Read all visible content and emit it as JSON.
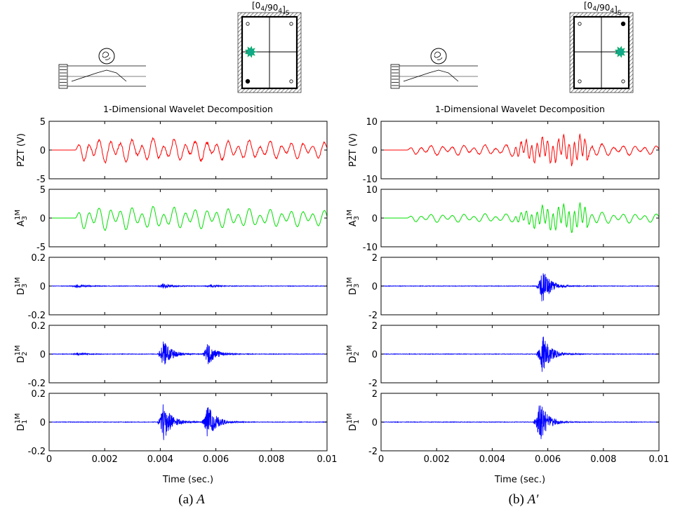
{
  "figure": {
    "laminate_label_main": "[0",
    "laminate_sub_1": "4",
    "laminate_mid": "/90",
    "laminate_sub_2": "4",
    "laminate_close": "]",
    "laminate_sub_3": "S",
    "xlabel": "Time (sec.)",
    "colors": {
      "pzt": "#ff0000",
      "approx": "#00e000",
      "detail": "#0000ff",
      "impact": "#11a88a"
    }
  },
  "panels": [
    {
      "caption_prefix": "(a) ",
      "caption_var": "A",
      "caption_suffix": "",
      "title": "1-Dimensional Wavelet Decomposition",
      "impact_side": "left",
      "filled_corner": "bottom-left",
      "xticks": [
        "0",
        "0.002",
        "0.004",
        "0.006",
        "0.008",
        "0.01"
      ],
      "subplots": [
        {
          "ylabel": "PZT (V)",
          "yticks": [
            "5",
            "0",
            "-5"
          ],
          "ylim": [
            -5,
            5
          ],
          "kind": "pzt"
        },
        {
          "ylabel_main": "A",
          "ylabel_sub": "3",
          "ylabel_sup": "1M",
          "yticks": [
            "5",
            "0",
            "-5"
          ],
          "ylim": [
            -5,
            5
          ],
          "kind": "approx"
        },
        {
          "ylabel_main": "D",
          "ylabel_sub": "3",
          "ylabel_sup": "1M",
          "yticks": [
            "0.2",
            "0",
            "-0.2"
          ],
          "ylim": [
            -0.2,
            0.2
          ],
          "kind": "detail"
        },
        {
          "ylabel_main": "D",
          "ylabel_sub": "2",
          "ylabel_sup": "1M",
          "yticks": [
            "0.2",
            "0",
            "-0.2"
          ],
          "ylim": [
            -0.2,
            0.2
          ],
          "kind": "detail"
        },
        {
          "ylabel_main": "D",
          "ylabel_sub": "1",
          "ylabel_sup": "1M",
          "yticks": [
            "0.2",
            "0",
            "-0.2"
          ],
          "ylim": [
            -0.2,
            0.2
          ],
          "kind": "detail"
        }
      ]
    },
    {
      "caption_prefix": "(b) ",
      "caption_var": "A′",
      "caption_suffix": "",
      "title": "1-Dimensional Wavelet Decomposition",
      "impact_side": "right",
      "filled_corner": "top-right",
      "xticks": [
        "0",
        "0.002",
        "0.004",
        "0.006",
        "0.008",
        "0.01"
      ],
      "subplots": [
        {
          "ylabel": "PZT (V)",
          "yticks": [
            "10",
            "0",
            "-10"
          ],
          "ylim": [
            -10,
            10
          ],
          "kind": "pzt"
        },
        {
          "ylabel_main": "A",
          "ylabel_sub": "3",
          "ylabel_sup": "1M",
          "yticks": [
            "10",
            "0",
            "-10"
          ],
          "ylim": [
            -10,
            10
          ],
          "kind": "approx"
        },
        {
          "ylabel_main": "D",
          "ylabel_sub": "3",
          "ylabel_sup": "1M",
          "yticks": [
            "2",
            "0",
            "-2"
          ],
          "ylim": [
            -2,
            2
          ],
          "kind": "detail"
        },
        {
          "ylabel_main": "D",
          "ylabel_sub": "2",
          "ylabel_sup": "1M",
          "yticks": [
            "2",
            "0",
            "-2"
          ],
          "ylim": [
            -2,
            2
          ],
          "kind": "detail"
        },
        {
          "ylabel_main": "D",
          "ylabel_sub": "1",
          "ylabel_sup": "1M",
          "yticks": [
            "2",
            "0",
            "-2"
          ],
          "ylim": [
            -2,
            2
          ],
          "kind": "detail"
        }
      ]
    }
  ],
  "chart_data": [
    {
      "type": "line",
      "title": "1-Dimensional Wavelet Decomposition",
      "xlabel": "Time (sec.)",
      "xlim": [
        0,
        0.01
      ],
      "series": [
        {
          "name": "PZT (V)",
          "ylim": [
            -5,
            5
          ],
          "onset": 0.00095,
          "amp_profile": [
            [
              0,
              0
            ],
            [
              0.00095,
              0
            ],
            [
              0.0012,
              2.2
            ],
            [
              0.004,
              2.0
            ],
            [
              0.006,
              1.8
            ],
            [
              0.01,
              1.4
            ]
          ]
        },
        {
          "name": "A3 1M",
          "ylim": [
            -5,
            5
          ],
          "onset": 0.00095,
          "amp_profile": [
            [
              0,
              0
            ],
            [
              0.00095,
              0
            ],
            [
              0.0012,
              2.2
            ],
            [
              0.004,
              2.0
            ],
            [
              0.006,
              1.8
            ],
            [
              0.01,
              1.4
            ]
          ]
        },
        {
          "name": "D3 1M",
          "ylim": [
            -0.2,
            0.2
          ],
          "bursts": [
            [
              0.001,
              0.012
            ],
            [
              0.0041,
              0.02
            ],
            [
              0.0058,
              0.01
            ]
          ]
        },
        {
          "name": "D2 1M",
          "ylim": [
            -0.2,
            0.2
          ],
          "bursts": [
            [
              0.001,
              0.01
            ],
            [
              0.0041,
              0.1
            ],
            [
              0.0057,
              0.08
            ]
          ]
        },
        {
          "name": "D1 1M",
          "ylim": [
            -0.2,
            0.2
          ],
          "bursts": [
            [
              0.0041,
              0.14
            ],
            [
              0.0057,
              0.13
            ]
          ]
        }
      ]
    },
    {
      "type": "line",
      "title": "1-Dimensional Wavelet Decomposition",
      "xlabel": "Time (sec.)",
      "xlim": [
        0,
        0.01
      ],
      "series": [
        {
          "name": "PZT (V)",
          "ylim": [
            -10,
            10
          ],
          "onset": 0.00095,
          "amp_profile": [
            [
              0,
              0
            ],
            [
              0.00095,
              0
            ],
            [
              0.0012,
              1.8
            ],
            [
              0.0045,
              1.8
            ],
            [
              0.0055,
              4.5
            ],
            [
              0.0072,
              5.5
            ],
            [
              0.008,
              2.0
            ],
            [
              0.01,
              1.5
            ]
          ]
        },
        {
          "name": "A3 1M",
          "ylim": [
            -10,
            10
          ],
          "onset": 0.00095,
          "amp_profile": [
            [
              0,
              0
            ],
            [
              0.00095,
              0
            ],
            [
              0.0012,
              1.5
            ],
            [
              0.0048,
              1.5
            ],
            [
              0.0058,
              4.5
            ],
            [
              0.0072,
              5.5
            ],
            [
              0.008,
              2.0
            ],
            [
              0.01,
              1.5
            ]
          ]
        },
        {
          "name": "D3 1M",
          "ylim": [
            -2,
            2
          ],
          "bursts": [
            [
              0.0058,
              1.3
            ]
          ]
        },
        {
          "name": "D2 1M",
          "ylim": [
            -2,
            2
          ],
          "bursts": [
            [
              0.0058,
              1.4
            ]
          ]
        },
        {
          "name": "D1 1M",
          "ylim": [
            -2,
            2
          ],
          "bursts": [
            [
              0.0057,
              1.5
            ]
          ]
        }
      ]
    }
  ]
}
